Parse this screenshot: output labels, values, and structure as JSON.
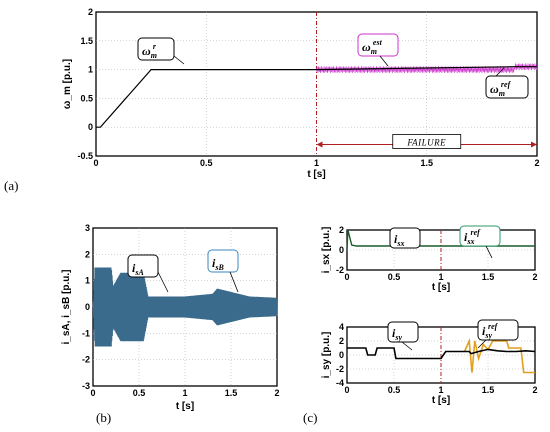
{
  "panel_labels": {
    "a": "(a)",
    "b": "(b)",
    "c": "(c)"
  },
  "failure_label": "FAILURE",
  "colors": {
    "speed": "#000000",
    "speed_est": "#cc33cc",
    "current": "#3a6a8c",
    "isx": "#1a5a2a",
    "isx_ref_box": "#2a9a6a",
    "isy_ref": "#e0a020",
    "failure_line": "#b02020",
    "est_box": "#cc33cc",
    "isB_box": "#3a8ac0"
  },
  "chart_data": [
    {
      "id": "a",
      "type": "line",
      "xlabel": "t [s]",
      "ylabel": "ω_m [p.u.]",
      "xlim": [
        0,
        2
      ],
      "ylim": [
        -0.5,
        2
      ],
      "xticks": [
        "0",
        "0.5",
        "1",
        "1.5",
        "2"
      ],
      "yticks": [
        "-0.5",
        "0",
        "0.5",
        "1",
        "1.5",
        "2"
      ],
      "grid": true,
      "annotations": [
        {
          "base": "ω",
          "sub": "m",
          "sup": "r"
        },
        {
          "base": "ω",
          "sub": "m",
          "sup": "est"
        },
        {
          "base": "ω",
          "sub": "m",
          "sup": "ref"
        }
      ],
      "failure_start": 1,
      "series": [
        {
          "x": [
            0,
            0.02,
            0.25,
            0.3,
            1.0,
            1.9,
            2.0
          ],
          "y": [
            0,
            0,
            1.0,
            1.0,
            1.0,
            1.05,
            1.05
          ]
        }
      ],
      "est_oscillation": {
        "x_start": 1.0,
        "x_end": 2.0,
        "center": 1.05,
        "amplitude": 0.06
      }
    },
    {
      "id": "b",
      "type": "line",
      "xlabel": "t [s]",
      "ylabel": "i_sA, i_sB [p.u.]",
      "xlim": [
        0,
        2
      ],
      "ylim": [
        -3,
        3
      ],
      "xticks": [
        "0",
        "0.5",
        "1",
        "1.5",
        "2"
      ],
      "yticks": [
        "-3",
        "-2",
        "-1",
        "0",
        "1",
        "2",
        "3"
      ],
      "grid": true,
      "annotations": [
        {
          "base": "i",
          "sub": "sA",
          "sup": ""
        },
        {
          "base": "i",
          "sub": "sB",
          "sup": ""
        }
      ],
      "envelope": {
        "x": [
          0,
          0.02,
          0.2,
          0.22,
          0.3,
          0.55,
          0.6,
          1.0,
          1.3,
          1.35,
          1.7,
          2.0
        ],
        "amp": [
          0,
          1.5,
          1.5,
          0.8,
          1.3,
          1.3,
          0.4,
          0.4,
          0.5,
          0.7,
          0.4,
          0.35
        ]
      }
    },
    {
      "id": "c1",
      "type": "line",
      "xlabel": "t [s]",
      "ylabel": "i_sx [p.u.]",
      "xlim": [
        0,
        2
      ],
      "ylim": [
        -2,
        2
      ],
      "xticks": [
        "0",
        "0.5",
        "1",
        "1.5",
        "2"
      ],
      "yticks": [
        "-2",
        "0",
        "2"
      ],
      "grid": true,
      "annotations": [
        {
          "base": "i",
          "sub": "sx",
          "sup": ""
        },
        {
          "base": "i",
          "sub": "sx",
          "sup": "ref"
        }
      ],
      "series": [
        {
          "x": [
            0,
            0.01,
            0.05,
            0.1,
            2.0
          ],
          "y": [
            0,
            2.0,
            0.5,
            0.4,
            0.4
          ]
        }
      ]
    },
    {
      "id": "c2",
      "type": "line",
      "xlabel": "t [s]",
      "ylabel": "i_sy [p.u.]",
      "xlim": [
        0,
        2
      ],
      "ylim": [
        -4,
        4
      ],
      "xticks": [
        "0",
        "0.5",
        "1",
        "1.5",
        "2"
      ],
      "yticks": [
        "-4",
        "-2",
        "0",
        "2",
        "4"
      ],
      "grid": true,
      "annotations": [
        {
          "base": "i",
          "sub": "sy",
          "sup": ""
        },
        {
          "base": "i",
          "sub": "sy",
          "sup": "ref"
        }
      ],
      "series": [
        {
          "name": "isy",
          "x": [
            0,
            0.2,
            0.22,
            0.3,
            0.32,
            0.5,
            0.52,
            1.0,
            1.05,
            1.3,
            1.32,
            1.4,
            1.5,
            1.6,
            1.7,
            1.8,
            1.9,
            2.0
          ],
          "y": [
            1.0,
            1.0,
            0.0,
            0.0,
            1.0,
            1.0,
            -0.5,
            -0.5,
            0.5,
            0.5,
            0.2,
            0.5,
            0.8,
            0.6,
            0.5,
            0.5,
            0.6,
            0.5
          ]
        },
        {
          "name": "isy_ref",
          "x": [
            1.25,
            1.3,
            1.33,
            1.36,
            1.4,
            1.45,
            1.5,
            1.55,
            1.7,
            1.72,
            1.85,
            1.88,
            2.0
          ],
          "y": [
            0.5,
            2.0,
            -2.5,
            2.0,
            -0.5,
            1.5,
            0.8,
            2.0,
            2.0,
            1.0,
            1.0,
            -2.5,
            -2.5
          ]
        }
      ]
    }
  ]
}
